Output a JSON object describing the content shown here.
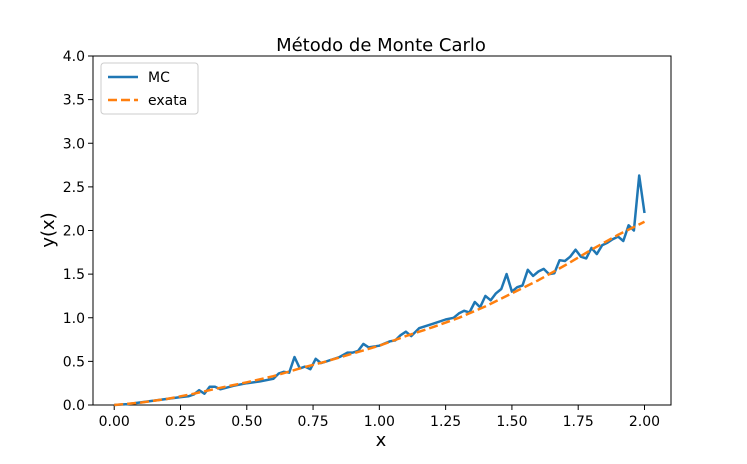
{
  "chart_data": {
    "type": "line",
    "title": "Método de Monte Carlo",
    "xlabel": "x",
    "ylabel": "y(x)",
    "xlim": [
      -0.08,
      2.1
    ],
    "ylim": [
      0.0,
      4.0
    ],
    "xticks": [
      0.0,
      0.25,
      0.5,
      0.75,
      1.0,
      1.25,
      1.5,
      1.75,
      2.0
    ],
    "xtick_labels": [
      "0.00",
      "0.25",
      "0.50",
      "0.75",
      "1.00",
      "1.25",
      "1.50",
      "1.75",
      "2.00"
    ],
    "yticks": [
      0.0,
      0.5,
      1.0,
      1.5,
      2.0,
      2.5,
      3.0,
      3.5,
      4.0
    ],
    "ytick_labels": [
      "0.0",
      "0.5",
      "1.0",
      "1.5",
      "2.0",
      "2.5",
      "3.0",
      "3.5",
      "4.0"
    ],
    "grid": false,
    "legend_position": "top-left",
    "series": [
      {
        "name": "MC",
        "color": "#1f77b4",
        "style": "solid",
        "x": [
          0.0,
          0.05,
          0.1,
          0.15,
          0.2,
          0.25,
          0.28,
          0.3,
          0.32,
          0.34,
          0.36,
          0.38,
          0.4,
          0.45,
          0.5,
          0.55,
          0.6,
          0.62,
          0.64,
          0.66,
          0.68,
          0.7,
          0.72,
          0.74,
          0.76,
          0.78,
          0.8,
          0.85,
          0.88,
          0.9,
          0.92,
          0.94,
          0.96,
          1.0,
          1.04,
          1.06,
          1.08,
          1.1,
          1.12,
          1.15,
          1.2,
          1.25,
          1.28,
          1.3,
          1.32,
          1.34,
          1.36,
          1.38,
          1.4,
          1.42,
          1.44,
          1.46,
          1.48,
          1.5,
          1.52,
          1.54,
          1.56,
          1.58,
          1.6,
          1.62,
          1.64,
          1.66,
          1.68,
          1.7,
          1.72,
          1.74,
          1.76,
          1.78,
          1.8,
          1.82,
          1.84,
          1.86,
          1.88,
          1.9,
          1.92,
          1.94,
          1.96,
          1.98,
          2.0
        ],
        "y": [
          0.0,
          0.01,
          0.03,
          0.05,
          0.07,
          0.09,
          0.1,
          0.12,
          0.17,
          0.13,
          0.21,
          0.21,
          0.18,
          0.22,
          0.25,
          0.27,
          0.3,
          0.36,
          0.38,
          0.37,
          0.55,
          0.42,
          0.44,
          0.41,
          0.53,
          0.48,
          0.5,
          0.55,
          0.6,
          0.6,
          0.62,
          0.7,
          0.66,
          0.68,
          0.73,
          0.74,
          0.8,
          0.84,
          0.79,
          0.88,
          0.93,
          0.98,
          1.0,
          1.05,
          1.08,
          1.06,
          1.18,
          1.12,
          1.25,
          1.2,
          1.28,
          1.33,
          1.5,
          1.3,
          1.35,
          1.37,
          1.55,
          1.48,
          1.53,
          1.56,
          1.5,
          1.51,
          1.66,
          1.65,
          1.7,
          1.78,
          1.7,
          1.68,
          1.8,
          1.73,
          1.83,
          1.86,
          1.9,
          1.93,
          1.88,
          2.06,
          2.0,
          2.63,
          2.2
        ]
      },
      {
        "name": "exata",
        "color": "#ff7f0e",
        "style": "dashed",
        "x": [
          0.0,
          0.1,
          0.2,
          0.3,
          0.4,
          0.5,
          0.6,
          0.7,
          0.8,
          0.9,
          1.0,
          1.1,
          1.2,
          1.3,
          1.4,
          1.5,
          1.6,
          1.7,
          1.8,
          1.9,
          2.0
        ],
        "y": [
          0.0,
          0.028,
          0.07,
          0.13,
          0.197,
          0.26,
          0.33,
          0.42,
          0.5,
          0.59,
          0.68,
          0.79,
          0.89,
          1.0,
          1.13,
          1.28,
          1.43,
          1.6,
          1.78,
          1.95,
          2.1
        ]
      }
    ]
  }
}
